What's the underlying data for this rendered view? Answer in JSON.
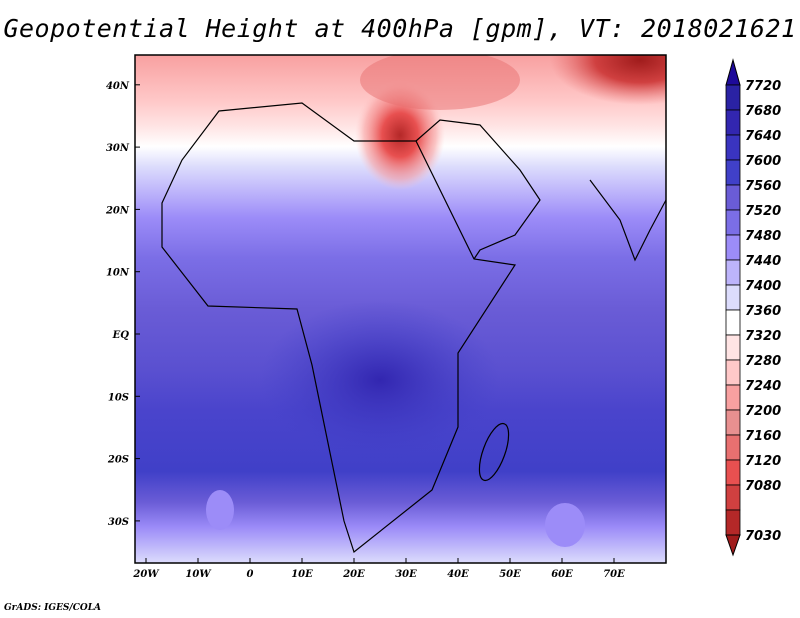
{
  "title": "Geopotential Height at 400hPa [gpm], VT: 2018021621",
  "credit": "GrADS: IGES/COLA",
  "lon_ticks": [
    "20W",
    "10W",
    "0",
    "10E",
    "20E",
    "30E",
    "40E",
    "50E",
    "60E",
    "70E"
  ],
  "lon_values": [
    -20,
    -10,
    0,
    10,
    20,
    30,
    40,
    50,
    60,
    70
  ],
  "lat_ticks": [
    "40N",
    "30N",
    "20N",
    "10N",
    "EQ",
    "10S",
    "20S",
    "30S"
  ],
  "lat_values": [
    40,
    30,
    20,
    10,
    0,
    -10,
    -20,
    -30
  ],
  "colorbar": {
    "labels": [
      "7720",
      "7680",
      "7640",
      "7600",
      "7560",
      "7520",
      "7480",
      "7440",
      "7400",
      "7360",
      "7320",
      "7280",
      "7240",
      "7200",
      "7160",
      "7120",
      "7080",
      "7030"
    ],
    "colors": [
      "#2a22a4",
      "#3226b0",
      "#3a34c0",
      "#4040c8",
      "#6a5cd6",
      "#7b6ee6",
      "#9c8cf8",
      "#bdb4fb",
      "#dcdcfc",
      "#ffffff",
      "#ffe4e4",
      "#ffc8c8",
      "#f8a0a0",
      "#e89090",
      "#e87070",
      "#e85050",
      "#d04040",
      "#b42828"
    ],
    "top_color": "#1e0a9a",
    "bottom_color": "#a01c1c"
  }
}
